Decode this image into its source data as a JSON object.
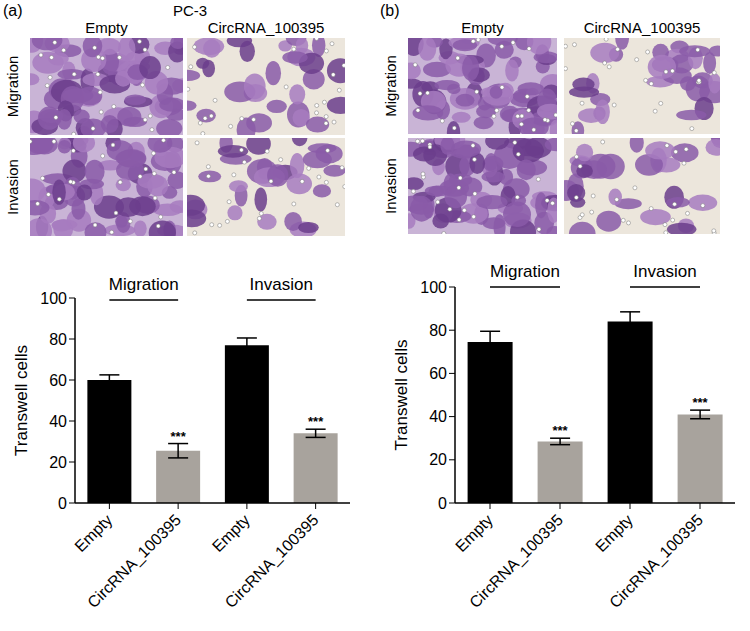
{
  "panels": [
    {
      "label": "(a)",
      "title": "PC-3",
      "image_columns": [
        "Empty",
        "CircRNA_100395"
      ],
      "image_rows": [
        "Migration",
        "Invasion"
      ]
    },
    {
      "label": "(b)",
      "image_columns": [
        "Empty",
        "CircRNA_100395"
      ],
      "image_rows": [
        "Migration",
        "Invasion"
      ]
    }
  ],
  "chart_data": [
    {
      "type": "bar",
      "categories": [
        "Empty",
        "CircRNA_100395",
        "Empty",
        "CircRNA_100395"
      ],
      "values": [
        60,
        25.5,
        77,
        34
      ],
      "errors": [
        2.5,
        3.5,
        3.5,
        2
      ],
      "colors": [
        "#000000",
        "#a8a39d",
        "#000000",
        "#a8a39d"
      ],
      "significance": [
        null,
        "***",
        null,
        "***"
      ],
      "y_label": "Transwell cells",
      "ylim": [
        0,
        100
      ],
      "yticks": [
        0,
        20,
        40,
        60,
        80,
        100
      ],
      "annotations": [
        {
          "text": "Migration",
          "x": [
            0,
            1
          ],
          "y": 99
        },
        {
          "text": "Invasion",
          "x": [
            2,
            3
          ],
          "y": 99
        }
      ]
    },
    {
      "type": "bar",
      "categories": [
        "Empty",
        "CircRNA_100395",
        "Empty",
        "CircRNA_100395"
      ],
      "values": [
        74.5,
        28.5,
        84,
        41
      ],
      "errors": [
        5,
        1.5,
        4.5,
        2
      ],
      "colors": [
        "#000000",
        "#a8a39d",
        "#000000",
        "#a8a39d"
      ],
      "significance": [
        null,
        "***",
        null,
        "***"
      ],
      "y_label": "Transwell cells",
      "ylim": [
        0,
        100
      ],
      "yticks": [
        0,
        20,
        40,
        60,
        80,
        100
      ],
      "annotations": [
        {
          "text": "Migration",
          "x": [
            0,
            1
          ],
          "y": 100
        },
        {
          "text": "Invasion",
          "x": [
            2,
            3
          ],
          "y": 100
        }
      ]
    }
  ]
}
